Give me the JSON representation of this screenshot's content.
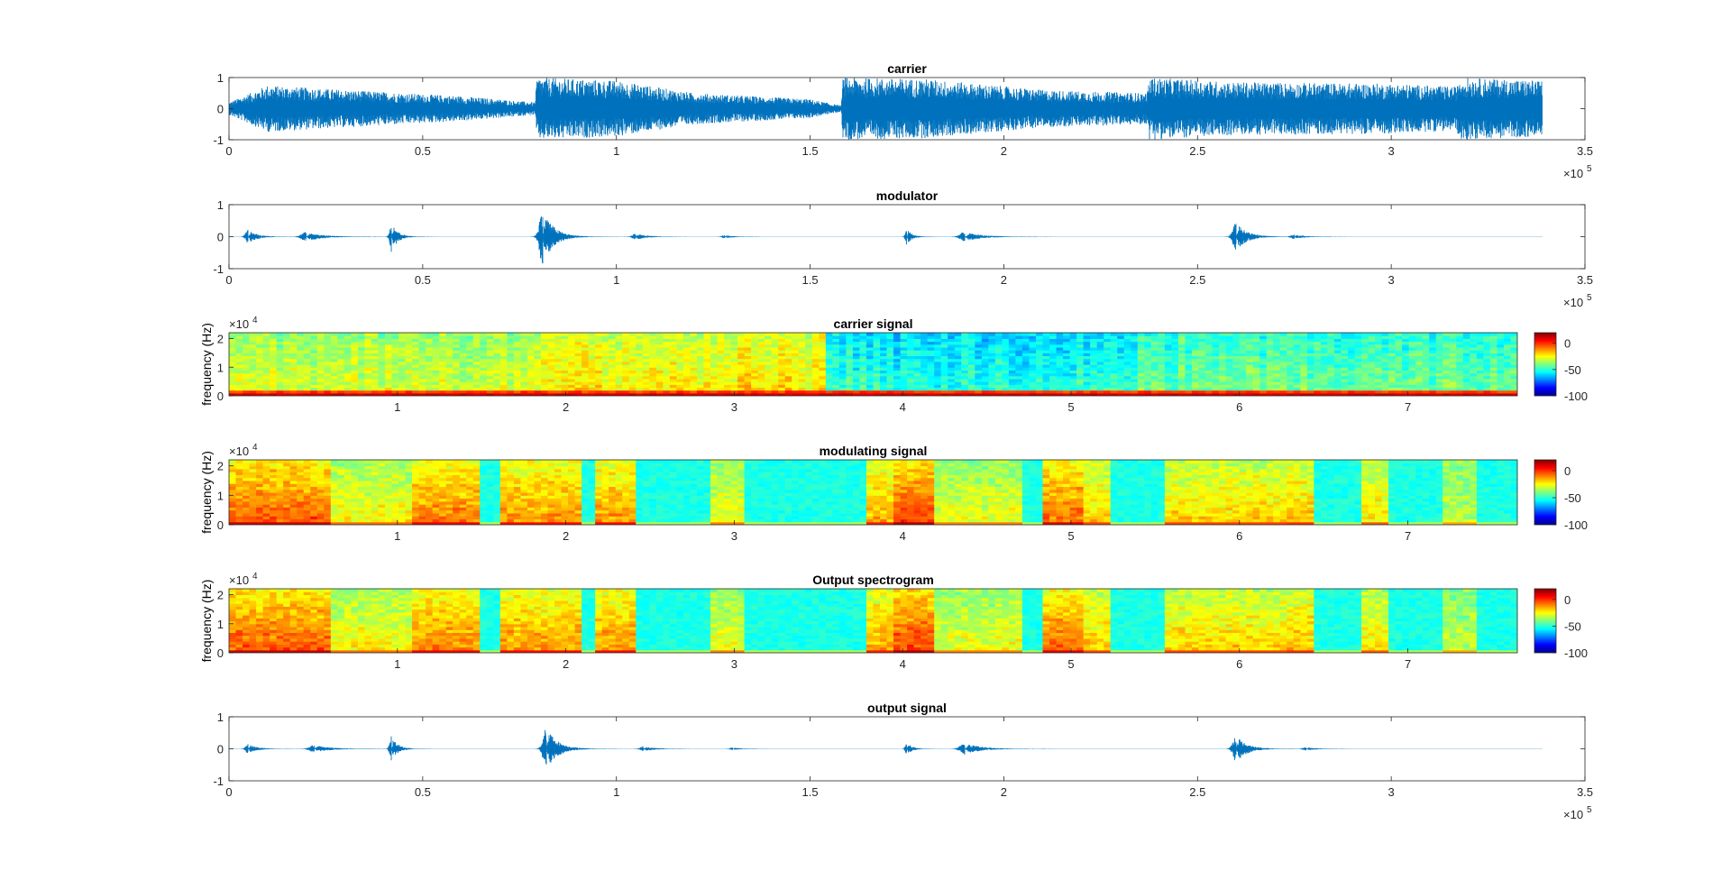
{
  "figure": {
    "background": "#ffffff",
    "line_color": "#0072BD",
    "axis_color": "#262626"
  },
  "chart_data": [
    {
      "type": "line",
      "title": "carrier",
      "xlabel": "",
      "ylabel": "",
      "xlim": [
        0,
        350000
      ],
      "ylim": [
        -1,
        1
      ],
      "xticks": [
        0,
        50000,
        100000,
        150000,
        200000,
        250000,
        300000,
        350000
      ],
      "xtick_labels": [
        "0",
        "0.5",
        "1",
        "1.5",
        "2",
        "2.5",
        "3",
        "3.5"
      ],
      "yticks": [
        -1,
        0,
        1
      ],
      "ytick_labels": [
        "-1",
        "0",
        "1"
      ],
      "x_exponent": "5",
      "signal_end": 339000,
      "envelope": [
        [
          0,
          0.2
        ],
        [
          10000,
          0.75
        ],
        [
          30000,
          0.6
        ],
        [
          60000,
          0.4
        ],
        [
          79000,
          0.2
        ],
        [
          79500,
          1.0
        ],
        [
          100000,
          0.9
        ],
        [
          120000,
          0.5
        ],
        [
          150000,
          0.3
        ],
        [
          158000,
          0.1
        ],
        [
          158500,
          1.0
        ],
        [
          180000,
          0.95
        ],
        [
          210000,
          0.6
        ],
        [
          237000,
          0.5
        ],
        [
          237500,
          1.0
        ],
        [
          260000,
          0.85
        ],
        [
          300000,
          0.8
        ],
        [
          317000,
          0.7
        ],
        [
          317500,
          1.0
        ],
        [
          339000,
          0.9
        ]
      ],
      "grid": false
    },
    {
      "type": "line",
      "title": "modulator",
      "xlabel": "",
      "ylabel": "",
      "xlim": [
        0,
        350000
      ],
      "ylim": [
        -1,
        1
      ],
      "xticks": [
        0,
        50000,
        100000,
        150000,
        200000,
        250000,
        300000,
        350000
      ],
      "xtick_labels": [
        "0",
        "0.5",
        "1",
        "1.5",
        "2",
        "2.5",
        "3",
        "3.5"
      ],
      "yticks": [
        -1,
        0,
        1
      ],
      "ytick_labels": [
        "-1",
        "0",
        "1"
      ],
      "x_exponent": "5",
      "signal_end": 339000,
      "bursts": [
        [
          5000,
          2500,
          0.22
        ],
        [
          20000,
          4500,
          0.15
        ],
        [
          42000,
          1800,
          0.5
        ],
        [
          81000,
          3200,
          0.9
        ],
        [
          105000,
          3000,
          0.1
        ],
        [
          128000,
          2500,
          0.05
        ],
        [
          175000,
          1500,
          0.25
        ],
        [
          190000,
          4500,
          0.16
        ],
        [
          260000,
          3200,
          0.45
        ],
        [
          275000,
          3000,
          0.07
        ]
      ],
      "grid": false
    },
    {
      "type": "heatmap",
      "title": "carrier signal",
      "xlabel": "",
      "ylabel": "frequency (Hz)",
      "xlim": [
        0,
        7.65
      ],
      "ylim": [
        0,
        22050
      ],
      "xticks": [
        1,
        2,
        3,
        4,
        5,
        6,
        7
      ],
      "xtick_labels": [
        "1",
        "2",
        "3",
        "4",
        "5",
        "6",
        "7"
      ],
      "yticks": [
        0,
        10000,
        20000
      ],
      "ytick_labels": [
        "0",
        "1",
        "2"
      ],
      "y_exponent": "4",
      "colorbar": {
        "ticks": [
          0,
          -50,
          -100
        ],
        "tick_labels": [
          "0",
          "-50",
          "-100"
        ],
        "range": [
          -100,
          20
        ],
        "colormap": "jet"
      },
      "regions": [
        [
          0,
          1.8,
          0.55
        ],
        [
          1.8,
          3.55,
          0.62
        ],
        [
          3.55,
          5.4,
          0.38
        ],
        [
          5.4,
          7.65,
          0.45
        ]
      ],
      "grid": false
    },
    {
      "type": "heatmap",
      "title": "modulating signal",
      "xlabel": "",
      "ylabel": "frequency (Hz)",
      "xlim": [
        0,
        7.65
      ],
      "ylim": [
        0,
        22050
      ],
      "xticks": [
        1,
        2,
        3,
        4,
        5,
        6,
        7
      ],
      "xtick_labels": [
        "1",
        "2",
        "3",
        "4",
        "5",
        "6",
        "7"
      ],
      "yticks": [
        0,
        10000,
        20000
      ],
      "ytick_labels": [
        "0",
        "1",
        "2"
      ],
      "y_exponent": "4",
      "colorbar": {
        "ticks": [
          0,
          -50,
          -100
        ],
        "tick_labels": [
          "0",
          "-50",
          "-100"
        ],
        "range": [
          -100,
          20
        ],
        "colormap": "jet"
      },
      "events": [
        [
          0.3,
          0.3,
          0.95
        ],
        [
          0.85,
          0.4,
          0.55
        ],
        [
          1.3,
          0.2,
          0.85
        ],
        [
          1.85,
          0.25,
          0.8
        ],
        [
          2.3,
          0.12,
          0.8
        ],
        [
          2.95,
          0.1,
          0.5
        ],
        [
          3.9,
          0.12,
          0.75
        ],
        [
          4.05,
          0.12,
          1.0
        ],
        [
          4.25,
          0.45,
          0.5
        ],
        [
          4.95,
          0.12,
          0.9
        ],
        [
          5.05,
          0.2,
          0.65
        ],
        [
          5.95,
          0.4,
          0.65
        ],
        [
          6.35,
          0.08,
          0.7
        ],
        [
          6.8,
          0.08,
          0.6
        ],
        [
          7.3,
          0.1,
          0.4
        ]
      ],
      "grid": false
    },
    {
      "type": "heatmap",
      "title": "Output spectrogram",
      "xlabel": "",
      "ylabel": "frequency (Hz)",
      "xlim": [
        0,
        7.65
      ],
      "ylim": [
        0,
        22050
      ],
      "xticks": [
        1,
        2,
        3,
        4,
        5,
        6,
        7
      ],
      "xtick_labels": [
        "1",
        "2",
        "3",
        "4",
        "5",
        "6",
        "7"
      ],
      "yticks": [
        0,
        10000,
        20000
      ],
      "ytick_labels": [
        "0",
        "1",
        "2"
      ],
      "y_exponent": "4",
      "colorbar": {
        "ticks": [
          0,
          -50,
          -100
        ],
        "tick_labels": [
          "0",
          "-50",
          "-100"
        ],
        "range": [
          -100,
          20
        ],
        "colormap": "jet"
      },
      "events": [
        [
          0.3,
          0.3,
          0.95
        ],
        [
          0.85,
          0.4,
          0.55
        ],
        [
          1.3,
          0.2,
          0.85
        ],
        [
          1.85,
          0.25,
          0.8
        ],
        [
          2.3,
          0.12,
          0.8
        ],
        [
          2.95,
          0.1,
          0.5
        ],
        [
          3.9,
          0.12,
          0.75
        ],
        [
          4.05,
          0.12,
          1.0
        ],
        [
          4.25,
          0.45,
          0.5
        ],
        [
          4.95,
          0.12,
          0.9
        ],
        [
          5.05,
          0.2,
          0.65
        ],
        [
          5.95,
          0.4,
          0.65
        ],
        [
          6.35,
          0.08,
          0.7
        ],
        [
          6.8,
          0.08,
          0.6
        ],
        [
          7.3,
          0.1,
          0.4
        ]
      ],
      "grid": false
    },
    {
      "type": "line",
      "title": "output signal",
      "xlabel": "",
      "ylabel": "",
      "xlim": [
        0,
        350000
      ],
      "ylim": [
        -1,
        1
      ],
      "xticks": [
        0,
        50000,
        100000,
        150000,
        200000,
        250000,
        300000,
        350000
      ],
      "xtick_labels": [
        "0",
        "0.5",
        "1",
        "1.5",
        "2",
        "2.5",
        "3",
        "3.5"
      ],
      "yticks": [
        -1,
        0,
        1
      ],
      "ytick_labels": [
        "-1",
        "0",
        "1"
      ],
      "x_exponent": "5",
      "signal_end": 339000,
      "bursts": [
        [
          5000,
          2500,
          0.15
        ],
        [
          22000,
          4500,
          0.12
        ],
        [
          42000,
          1800,
          0.4
        ],
        [
          82000,
          3200,
          0.7
        ],
        [
          107000,
          3000,
          0.08
        ],
        [
          130000,
          2500,
          0.04
        ],
        [
          175000,
          1500,
          0.2
        ],
        [
          190000,
          4500,
          0.18
        ],
        [
          260000,
          3200,
          0.42
        ],
        [
          278000,
          3000,
          0.05
        ]
      ],
      "grid": false
    }
  ]
}
